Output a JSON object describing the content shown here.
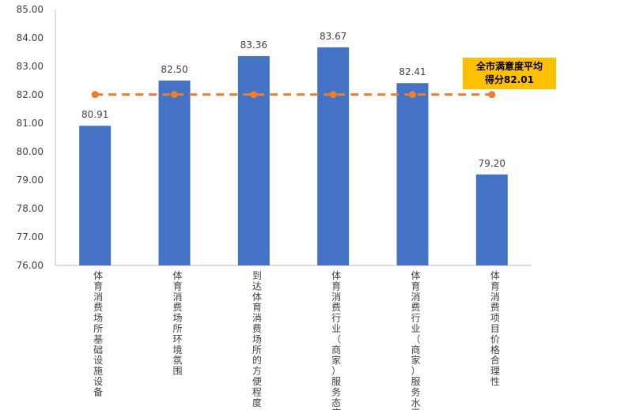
{
  "chart_data": {
    "type": "bar",
    "categories": [
      "体育消费场所基础设施设备",
      "体育消费场所环境氛围",
      "到达体育消费场所的方便程度",
      "体育消费行业（商家）服务态度",
      "体育消费行业（商家）服务水平",
      "体育消费项目价格合理性"
    ],
    "values": [
      80.91,
      82.5,
      83.36,
      83.67,
      82.41,
      79.2
    ],
    "value_labels": [
      "80.91",
      "82.50",
      "83.36",
      "83.67",
      "82.41",
      "79.20"
    ],
    "ylim": [
      76.0,
      85.0
    ],
    "yticks": [
      "76.00",
      "77.00",
      "78.00",
      "79.00",
      "80.00",
      "81.00",
      "82.00",
      "83.00",
      "84.00",
      "85.00"
    ],
    "bar_color": "#4472c4",
    "average": {
      "value": 82.01,
      "line_color": "#ed7d31",
      "callout_line1": "全市满意度平均",
      "callout_line2": "得分82.01",
      "callout_color": "#ffc000"
    },
    "grid": false,
    "title": "",
    "xlabel": "",
    "ylabel": ""
  }
}
